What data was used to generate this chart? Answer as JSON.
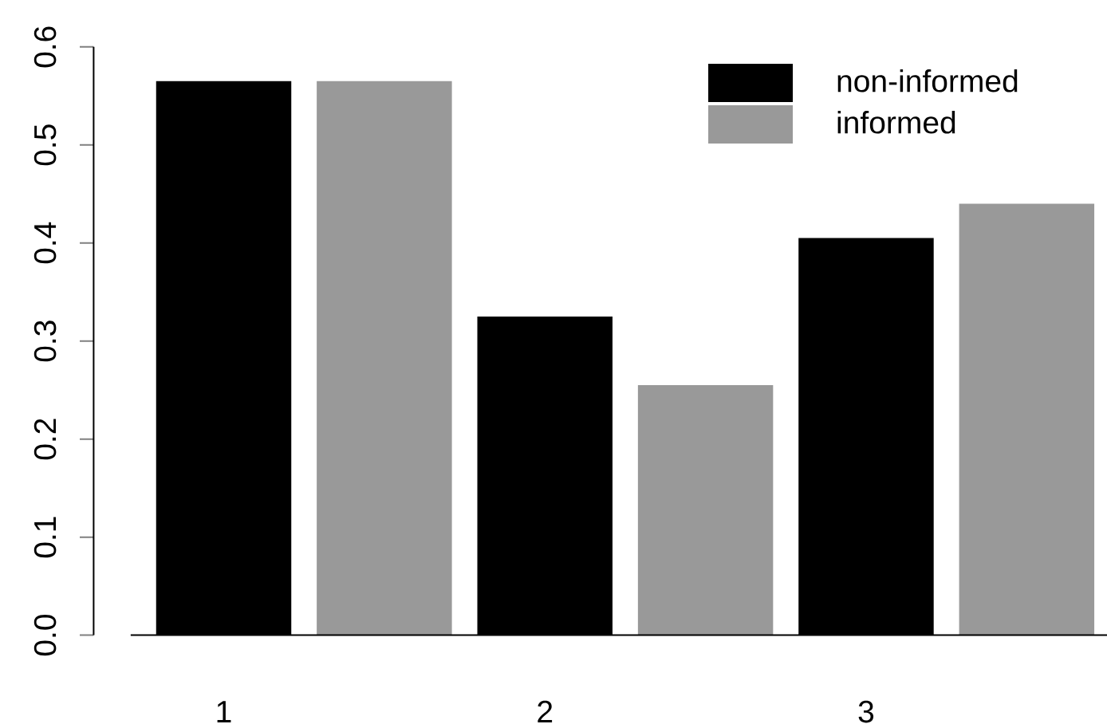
{
  "chart_data": {
    "type": "bar",
    "categories": [
      "1",
      "2",
      "3"
    ],
    "series": [
      {
        "name": "non-informed",
        "color": "#000000",
        "values": [
          0.565,
          0.325,
          0.405
        ]
      },
      {
        "name": "informed",
        "color": "#999999",
        "values": [
          0.565,
          0.255,
          0.44
        ]
      }
    ],
    "ylim": [
      0,
      0.6
    ],
    "yticks": [
      {
        "value": 0,
        "label": "0.0"
      },
      0.1,
      0.2,
      0.3,
      0.4,
      0.5,
      0.6
    ],
    "legend": "top right"
  }
}
